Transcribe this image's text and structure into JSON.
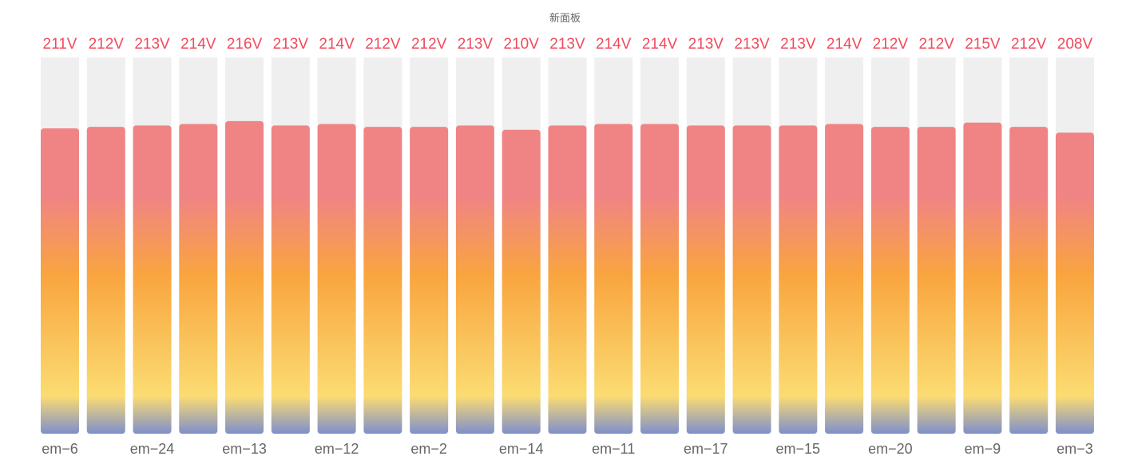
{
  "panel": {
    "title": "新面板"
  },
  "chart_data": {
    "type": "bar",
    "title": "新面板",
    "unit": "V",
    "categories": [
      "em-6",
      "",
      "em-24",
      "",
      "em-13",
      "",
      "em-12",
      "",
      "em-2",
      "",
      "em-14",
      "",
      "em-11",
      "",
      "em-17",
      "",
      "em-15",
      "",
      "em-20",
      "",
      "em-9",
      "",
      "em-3"
    ],
    "values": [
      211,
      212,
      213,
      214,
      216,
      213,
      214,
      212,
      212,
      213,
      210,
      213,
      214,
      214,
      213,
      213,
      213,
      214,
      212,
      212,
      215,
      212,
      208
    ],
    "value_labels": [
      "211V",
      "212V",
      "213V",
      "214V",
      "216V",
      "213V",
      "214V",
      "212V",
      "212V",
      "213V",
      "210V",
      "213V",
      "214V",
      "214V",
      "213V",
      "213V",
      "213V",
      "214V",
      "212V",
      "212V",
      "215V",
      "212V",
      "208V"
    ],
    "ylim": [
      0,
      260
    ],
    "grid": false,
    "legend": "none",
    "colors": {
      "value_text": "#f2495c",
      "track": "#efefef",
      "gradient": [
        "#f08484",
        "#f9a53f",
        "#fbdc72",
        "#7f8fcc"
      ],
      "axis_text": "#666666"
    }
  }
}
